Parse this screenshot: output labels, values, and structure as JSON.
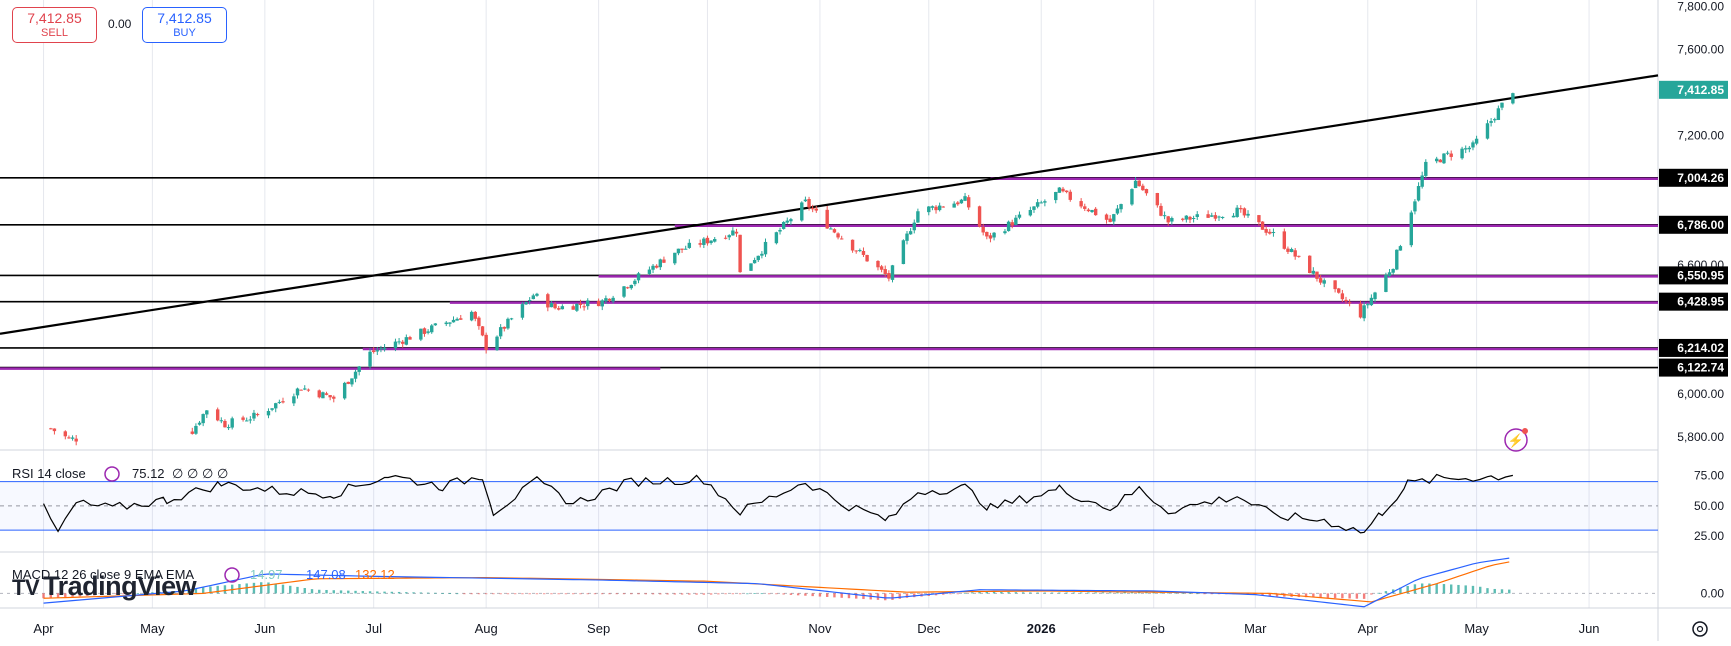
{
  "trade": {
    "sell_price": "7,412.85",
    "sell_label": "SELL",
    "buy_price": "7,412.85",
    "buy_label": "BUY",
    "spread": "0.00"
  },
  "watermark": "TradingView",
  "watermark_logo": "TV",
  "colors": {
    "up": "#26a69a",
    "down": "#ef5350",
    "trendline": "#000000",
    "support": "#9c27b0",
    "rsi_line": "#000000",
    "rsi_band": "#2962ff",
    "macd_line": "#2962ff",
    "signal_line": "#ff6d00",
    "current_price_bg": "#26a69a"
  },
  "chart_data": [
    {
      "type": "candlestick",
      "y_axis_ticks": [
        "7,800.00",
        "7,600.00",
        "7,400.00",
        "7,200.00",
        "6,600.00",
        "6,000.00",
        "5,800.00"
      ],
      "y_axis_tick_values": [
        7800,
        7600,
        7400,
        7200,
        6600,
        6000,
        5800
      ],
      "ylim": [
        5740,
        7830
      ],
      "x_axis_labels": [
        "Apr",
        "May",
        "Jun",
        "Jul",
        "Aug",
        "Sep",
        "Oct",
        "Nov",
        "Dec",
        "2026",
        "Feb",
        "Mar",
        "Apr",
        "May",
        "Jun"
      ],
      "x_axis_dates": [
        "2025-04-01",
        "2025-05-01",
        "2025-06-01",
        "2025-07-01",
        "2025-08-01",
        "2025-09-01",
        "2025-10-01",
        "2025-11-01",
        "2025-12-01",
        "2026-01-01",
        "2026-02-01",
        "2026-03-01",
        "2026-04-01",
        "2026-05-01",
        "2026-06-01"
      ],
      "x_axis_bold": "2026",
      "current_price": 7412.85,
      "current_price_label": "7,412.85",
      "horizontal_levels": [
        {
          "value": 7004.26,
          "label": "7,004.26"
        },
        {
          "value": 6786.0,
          "label": "6,786.00"
        },
        {
          "value": 6550.95,
          "label": "6,550.95"
        },
        {
          "value": 6428.95,
          "label": "6,428.95"
        },
        {
          "value": 6214.02,
          "label": "6,214.02"
        },
        {
          "value": 6122.74,
          "label": "6,122.74"
        }
      ],
      "support_segments": [
        {
          "value": 7004.26,
          "from": "2025-12-18",
          "to": "2026-06-20"
        },
        {
          "value": 6786.0,
          "from": "2025-09-22",
          "to": "2026-06-20"
        },
        {
          "value": 6550.95,
          "from": "2025-09-01",
          "to": "2026-06-20"
        },
        {
          "value": 6428.95,
          "from": "2025-07-22",
          "to": "2026-06-20"
        },
        {
          "value": 6214.02,
          "from": "2025-06-28",
          "to": "2026-06-20"
        },
        {
          "value": 6122.74,
          "from": "2025-03-20",
          "to": "2025-09-18"
        }
      ],
      "trendline": {
        "start": {
          "date": "2025-03-20",
          "value": 6280
        },
        "end": {
          "date": "2026-06-20",
          "value": 7480
        }
      },
      "price_path": [
        {
          "date": "2025-04-03",
          "value": 5840
        },
        {
          "date": "2025-04-08",
          "value": 5790
        },
        {
          "date": "2025-05-12",
          "value": 5830
        },
        {
          "date": "2025-05-16",
          "value": 5930
        },
        {
          "date": "2025-05-21",
          "value": 5860
        },
        {
          "date": "2025-05-30",
          "value": 5900
        },
        {
          "date": "2025-06-11",
          "value": 6030
        },
        {
          "date": "2025-06-20",
          "value": 5980
        },
        {
          "date": "2025-06-30",
          "value": 6190
        },
        {
          "date": "2025-07-28",
          "value": 6380
        },
        {
          "date": "2025-08-01",
          "value": 6220
        },
        {
          "date": "2025-08-14",
          "value": 6460
        },
        {
          "date": "2025-08-20",
          "value": 6400
        },
        {
          "date": "2025-09-02",
          "value": 6430
        },
        {
          "date": "2025-09-22",
          "value": 6660
        },
        {
          "date": "2025-10-09",
          "value": 6760
        },
        {
          "date": "2025-10-10",
          "value": 6560
        },
        {
          "date": "2025-10-28",
          "value": 6890
        },
        {
          "date": "2025-11-04",
          "value": 6770
        },
        {
          "date": "2025-11-20",
          "value": 6540
        },
        {
          "date": "2025-11-28",
          "value": 6850
        },
        {
          "date": "2025-12-11",
          "value": 6900
        },
        {
          "date": "2025-12-17",
          "value": 6720
        },
        {
          "date": "2026-01-06",
          "value": 6940
        },
        {
          "date": "2026-01-20",
          "value": 6800
        },
        {
          "date": "2026-01-27",
          "value": 6990
        },
        {
          "date": "2026-02-05",
          "value": 6800
        },
        {
          "date": "2026-02-24",
          "value": 6850
        },
        {
          "date": "2026-03-06",
          "value": 6740
        },
        {
          "date": "2026-03-20",
          "value": 6510
        },
        {
          "date": "2026-03-30",
          "value": 6370
        },
        {
          "date": "2026-04-08",
          "value": 6600
        },
        {
          "date": "2026-04-17",
          "value": 7060
        },
        {
          "date": "2026-04-23",
          "value": 7110
        },
        {
          "date": "2026-04-30",
          "value": 7150
        },
        {
          "date": "2026-05-11",
          "value": 7412.85
        }
      ],
      "sub_indicators": [
        {
          "label": "RSI 14 close",
          "value": "75.12",
          "extra_values": [
            "∅",
            "∅",
            "∅",
            "∅"
          ],
          "ticks": [
            "75.00",
            "50.00",
            "25.00"
          ],
          "tick_values": [
            75,
            50,
            25
          ],
          "bands": [
            70,
            50,
            30
          ],
          "ylim": [
            12,
            96
          ],
          "path": [
            {
              "date": "2025-04-01",
              "value": 48
            },
            {
              "date": "2025-04-05",
              "value": 28
            },
            {
              "date": "2025-04-10",
              "value": 52
            },
            {
              "date": "2025-04-20",
              "value": 48
            },
            {
              "date": "2025-05-05",
              "value": 55
            },
            {
              "date": "2025-05-20",
              "value": 68
            },
            {
              "date": "2025-06-05",
              "value": 62
            },
            {
              "date": "2025-06-20",
              "value": 60
            },
            {
              "date": "2025-07-05",
              "value": 75
            },
            {
              "date": "2025-07-20",
              "value": 66
            },
            {
              "date": "2025-07-31",
              "value": 75
            },
            {
              "date": "2025-08-03",
              "value": 45
            },
            {
              "date": "2025-08-15",
              "value": 70
            },
            {
              "date": "2025-08-25",
              "value": 52
            },
            {
              "date": "2025-09-10",
              "value": 70
            },
            {
              "date": "2025-09-30",
              "value": 72
            },
            {
              "date": "2025-10-10",
              "value": 45
            },
            {
              "date": "2025-10-28",
              "value": 70
            },
            {
              "date": "2025-11-07",
              "value": 52
            },
            {
              "date": "2025-11-20",
              "value": 38
            },
            {
              "date": "2025-11-28",
              "value": 62
            },
            {
              "date": "2025-12-11",
              "value": 65
            },
            {
              "date": "2025-12-18",
              "value": 48
            },
            {
              "date": "2026-01-06",
              "value": 64
            },
            {
              "date": "2026-01-20",
              "value": 48
            },
            {
              "date": "2026-01-28",
              "value": 64
            },
            {
              "date": "2026-02-05",
              "value": 46
            },
            {
              "date": "2026-02-24",
              "value": 58
            },
            {
              "date": "2026-03-06",
              "value": 42
            },
            {
              "date": "2026-03-20",
              "value": 38
            },
            {
              "date": "2026-03-31",
              "value": 28
            },
            {
              "date": "2026-04-05",
              "value": 45
            },
            {
              "date": "2026-04-12",
              "value": 68
            },
            {
              "date": "2026-04-20",
              "value": 72
            },
            {
              "date": "2026-05-05",
              "value": 74
            },
            {
              "date": "2026-05-11",
              "value": 75.12
            }
          ]
        },
        {
          "label": "MACD 12 26 close 9 EMA EMA",
          "histogram_label": "14.97",
          "macd_label": "147.08",
          "signal_label": "132.12",
          "ticks": [
            "0.00"
          ],
          "tick_values": [
            0
          ],
          "ylim": [
            -60,
            170
          ],
          "macd_path": [
            {
              "date": "2025-04-01",
              "value": -40
            },
            {
              "date": "2025-05-10",
              "value": 10
            },
            {
              "date": "2025-06-01",
              "value": 80
            },
            {
              "date": "2025-07-01",
              "value": 70
            },
            {
              "date": "2025-09-01",
              "value": 55
            },
            {
              "date": "2025-10-15",
              "value": 40
            },
            {
              "date": "2025-11-20",
              "value": -20
            },
            {
              "date": "2025-12-15",
              "value": 15
            },
            {
              "date": "2026-02-01",
              "value": 10
            },
            {
              "date": "2026-03-01",
              "value": -5
            },
            {
              "date": "2026-03-31",
              "value": -55
            },
            {
              "date": "2026-04-15",
              "value": 60
            },
            {
              "date": "2026-05-01",
              "value": 125
            },
            {
              "date": "2026-05-11",
              "value": 147.08
            }
          ],
          "signal_path": [
            {
              "date": "2025-04-01",
              "value": -20
            },
            {
              "date": "2025-05-15",
              "value": 0
            },
            {
              "date": "2025-06-15",
              "value": 60
            },
            {
              "date": "2025-08-01",
              "value": 65
            },
            {
              "date": "2025-10-01",
              "value": 50
            },
            {
              "date": "2025-11-25",
              "value": 5
            },
            {
              "date": "2026-01-01",
              "value": 10
            },
            {
              "date": "2026-03-05",
              "value": 0
            },
            {
              "date": "2026-04-02",
              "value": -35
            },
            {
              "date": "2026-04-20",
              "value": 40
            },
            {
              "date": "2026-05-05",
              "value": 115
            },
            {
              "date": "2026-05-11",
              "value": 132.12
            }
          ]
        }
      ]
    }
  ]
}
